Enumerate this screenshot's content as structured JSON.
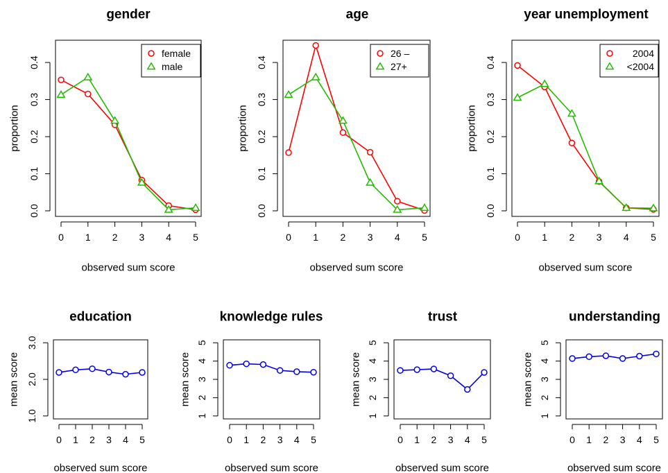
{
  "colors": {
    "series_red": "#ff0000",
    "series_green": "#22bb00",
    "series_blue": "#0000ee"
  },
  "chart_data": [
    {
      "type": "line",
      "title": "gender",
      "xlabel": "observed sum score",
      "ylabel": "proportion",
      "x": [
        0,
        1,
        2,
        3,
        4,
        5
      ],
      "xticks": [
        "0",
        "1",
        "2",
        "3",
        "4",
        "5"
      ],
      "ylim": [
        -0.015,
        0.46
      ],
      "yticks": [
        "0.0",
        "0.1",
        "0.2",
        "0.3",
        "0.4"
      ],
      "legend_position": "top-right",
      "series": [
        {
          "name": "female",
          "marker": "circle",
          "color": "red",
          "values": [
            0.353,
            0.315,
            0.232,
            0.083,
            0.014,
            0.003
          ]
        },
        {
          "name": "male",
          "marker": "triangle",
          "color": "green",
          "values": [
            0.313,
            0.36,
            0.243,
            0.076,
            0.003,
            0.008
          ]
        }
      ]
    },
    {
      "type": "line",
      "title": "age",
      "xlabel": "observed sum score",
      "ylabel": "proportion",
      "x": [
        0,
        1,
        2,
        3,
        4,
        5
      ],
      "xticks": [
        "0",
        "1",
        "2",
        "3",
        "4",
        "5"
      ],
      "ylim": [
        -0.015,
        0.46
      ],
      "yticks": [
        "0.0",
        "0.1",
        "0.2",
        "0.3",
        "0.4"
      ],
      "legend_position": "top-right",
      "series": [
        {
          "name": "26 –",
          "marker": "circle",
          "color": "red",
          "values": [
            0.157,
            0.446,
            0.211,
            0.158,
            0.026,
            0.001
          ]
        },
        {
          "name": "27+",
          "marker": "triangle",
          "color": "green",
          "values": [
            0.313,
            0.36,
            0.243,
            0.076,
            0.003,
            0.008
          ]
        }
      ]
    },
    {
      "type": "line",
      "title": "year unemployment",
      "xlabel": "observed sum score",
      "ylabel": "proportion",
      "x": [
        0,
        1,
        2,
        3,
        4,
        5
      ],
      "xticks": [
        "0",
        "1",
        "2",
        "3",
        "4",
        "5"
      ],
      "ylim": [
        -0.015,
        0.46
      ],
      "yticks": [
        "0.0",
        "0.1",
        "0.2",
        "0.3",
        "0.4"
      ],
      "legend_position": "top-right",
      "series": [
        {
          "name": "2004",
          "marker": "circle",
          "color": "red",
          "values": [
            0.392,
            0.334,
            0.183,
            0.079,
            0.008,
            0.004
          ]
        },
        {
          "name": "<2004",
          "marker": "triangle",
          "color": "green",
          "values": [
            0.305,
            0.342,
            0.262,
            0.08,
            0.008,
            0.007
          ]
        }
      ]
    },
    {
      "type": "line",
      "title": "education",
      "xlabel": "observed sum score",
      "ylabel": "mean score",
      "x": [
        0,
        1,
        2,
        3,
        4,
        5
      ],
      "xticks": [
        "0",
        "1",
        "2",
        "3",
        "4",
        "5"
      ],
      "ylim": [
        0.92,
        3.08
      ],
      "yticks": [
        "1.0",
        "2.0",
        "3.0"
      ],
      "series": [
        {
          "marker": "circle",
          "color": "blue",
          "values": [
            2.19,
            2.26,
            2.29,
            2.2,
            2.14,
            2.19
          ]
        }
      ]
    },
    {
      "type": "line",
      "title": "knowledge rules",
      "xlabel": "observed sum score",
      "ylabel": "mean score",
      "x": [
        0,
        1,
        2,
        3,
        4,
        5
      ],
      "xticks": [
        "0",
        "1",
        "2",
        "3",
        "4",
        "5"
      ],
      "ylim": [
        0.84,
        5.16
      ],
      "yticks": [
        "1",
        "2",
        "3",
        "4",
        "5"
      ],
      "series": [
        {
          "marker": "circle",
          "color": "blue",
          "values": [
            3.77,
            3.85,
            3.81,
            3.49,
            3.42,
            3.39
          ]
        }
      ]
    },
    {
      "type": "line",
      "title": "trust",
      "xlabel": "observed sum score",
      "ylabel": "mean score",
      "x": [
        0,
        1,
        2,
        3,
        4,
        5
      ],
      "xticks": [
        "0",
        "1",
        "2",
        "3",
        "4",
        "5"
      ],
      "ylim": [
        0.84,
        5.16
      ],
      "yticks": [
        "1",
        "2",
        "3",
        "4",
        "5"
      ],
      "series": [
        {
          "marker": "circle",
          "color": "blue",
          "values": [
            3.49,
            3.53,
            3.57,
            3.2,
            2.45,
            3.38
          ]
        }
      ]
    },
    {
      "type": "line",
      "title": "understanding",
      "xlabel": "observed sum score",
      "ylabel": "mean score",
      "x": [
        0,
        1,
        2,
        3,
        4,
        5
      ],
      "xticks": [
        "0",
        "1",
        "2",
        "3",
        "4",
        "5"
      ],
      "ylim": [
        0.84,
        5.16
      ],
      "yticks": [
        "1",
        "2",
        "3",
        "4",
        "5"
      ],
      "series": [
        {
          "marker": "circle",
          "color": "blue",
          "values": [
            4.14,
            4.24,
            4.29,
            4.14,
            4.27,
            4.39
          ]
        }
      ]
    }
  ]
}
